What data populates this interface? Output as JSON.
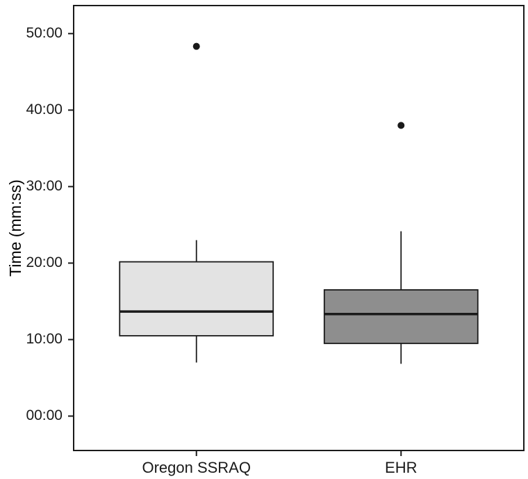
{
  "chart_data": {
    "type": "boxplot",
    "title": "",
    "xlabel": "",
    "ylabel": "Time (mm:ss)",
    "y_unit": "seconds",
    "ylim_seconds": [
      -270,
      3220
    ],
    "grid": "off",
    "legend": "none",
    "stroke_color": "#1a1a1a",
    "outlier_color": "#1a1a1a",
    "box_width_frac": 0.341,
    "y_ticks": [
      {
        "label": "00:00",
        "seconds": 0
      },
      {
        "label": "10:00",
        "seconds": 600
      },
      {
        "label": "20:00",
        "seconds": 1200
      },
      {
        "label": "30:00",
        "seconds": 1800
      },
      {
        "label": "40:00",
        "seconds": 2400
      },
      {
        "label": "50:00",
        "seconds": 3000
      }
    ],
    "series": [
      {
        "label": "Oregon SSRAQ",
        "fill": "#e3e3e3",
        "whisker_low": "07:00",
        "q1": "10:30",
        "median": "13:40",
        "q3": "20:10",
        "whisker_high": "23:00",
        "whisker_low_s": 420,
        "q1_s": 630,
        "median_s": 820,
        "q3_s": 1210,
        "whisker_high_s": 1380,
        "outliers": [
          "48:20"
        ],
        "outliers_s": [
          2900
        ]
      },
      {
        "label": "EHR",
        "fill": "#8e8e8e",
        "whisker_low": "06:50",
        "q1": "09:30",
        "median": "13:20",
        "q3": "16:30",
        "whisker_high": "24:10",
        "whisker_low_s": 410,
        "q1_s": 570,
        "median_s": 800,
        "q3_s": 990,
        "whisker_high_s": 1450,
        "outliers": [
          "38:00"
        ],
        "outliers_s": [
          2280
        ]
      }
    ]
  }
}
